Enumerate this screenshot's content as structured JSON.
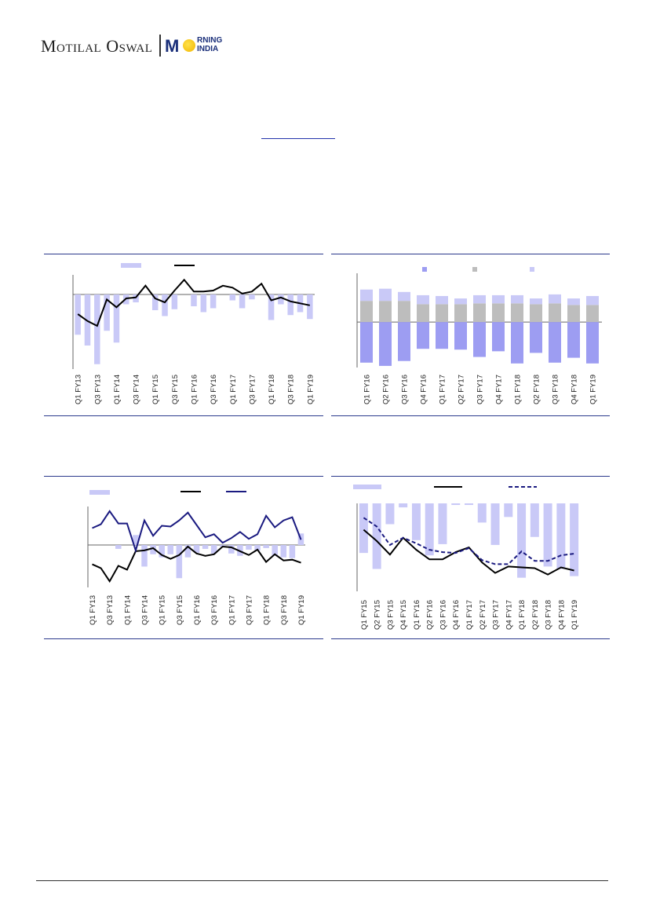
{
  "header": {
    "logo_brand": "Motilal Oswal",
    "logo_sub_top": "RNING",
    "logo_sub_bottom": "INDIA",
    "logo_m": "M"
  },
  "colors": {
    "bar_light": "#c9c9f7",
    "bar_medium": "#9d9df2",
    "bar_grey": "#bdbdbd",
    "line_black": "#000000",
    "line_navy": "#1a1a80",
    "rule": "#2b3a8c"
  },
  "chart_data": [
    {
      "id": "chart1",
      "type": "bar",
      "categories": [
        "Q1 FY13",
        "Q2 FY13",
        "Q3 FY13",
        "Q4 FY13",
        "Q1 FY14",
        "Q2 FY14",
        "Q3 FY14",
        "Q4 FY14",
        "Q1 FY15",
        "Q2 FY15",
        "Q3 FY15",
        "Q4 FY15",
        "Q1 FY16",
        "Q2 FY16",
        "Q3 FY16",
        "Q4 FY16",
        "Q1 FY17",
        "Q2 FY17",
        "Q3 FY17",
        "Q4 FY17",
        "Q1 FY18",
        "Q2 FY18",
        "Q3 FY18",
        "Q4 FY18",
        "Q1 FY19"
      ],
      "x_tick_labels": [
        "Q1 FY13",
        "Q3 FY13",
        "Q1 FY14",
        "Q3 FY14",
        "Q1 FY15",
        "Q3 FY15",
        "Q1 FY16",
        "Q3 FY16",
        "Q1 FY17",
        "Q3 FY17",
        "Q1 FY18",
        "Q3 FY18",
        "Q1 FY19"
      ],
      "series": [
        {
          "kind": "bar",
          "color": "#c9c9f7",
          "values": [
            -4.1,
            -5.2,
            -7.1,
            -3.7,
            -4.9,
            -1.0,
            -0.8,
            0.0,
            -1.6,
            -2.2,
            -1.5,
            0.0,
            -1.2,
            -1.8,
            -1.4,
            0.0,
            -0.6,
            -1.4,
            -0.5,
            0.0,
            -2.6,
            -1.0,
            -2.1,
            -1.8,
            -2.5
          ]
        },
        {
          "kind": "line",
          "color": "#000000",
          "values": [
            -2.0,
            -2.7,
            -3.2,
            -0.5,
            -1.3,
            -0.4,
            -0.3,
            0.9,
            -0.4,
            -0.8,
            0.4,
            1.5,
            0.3,
            0.3,
            0.4,
            0.9,
            0.7,
            0.1,
            0.3,
            1.1,
            -0.6,
            -0.3,
            -0.7,
            -0.9,
            -1.1
          ]
        }
      ],
      "ylim": [
        -7.6,
        2.0
      ]
    },
    {
      "id": "chart2",
      "type": "bar",
      "categories": [
        "Q1 FY16",
        "Q2 FY16",
        "Q3 FY16",
        "Q4 FY16",
        "Q1 FY17",
        "Q2 FY17",
        "Q3 FY17",
        "Q4 FY17",
        "Q1 FY18",
        "Q2 FY18",
        "Q3 FY18",
        "Q4 FY18",
        "Q1 FY19"
      ],
      "x_tick_labels": [
        "Q1 FY16",
        "Q2 FY16",
        "Q3 FY16",
        "Q4 FY16",
        "Q1 FY17",
        "Q2 FY17",
        "Q3 FY17",
        "Q4 FY17",
        "Q1 FY18",
        "Q2 FY18",
        "Q3 FY18",
        "Q4 FY18",
        "Q1 FY19"
      ],
      "stacked": true,
      "series": [
        {
          "kind": "bar",
          "color": "#9d9df2",
          "values": [
            -5.0,
            -5.4,
            -4.8,
            -3.3,
            -3.3,
            -3.4,
            -4.3,
            -3.6,
            -5.1,
            -3.8,
            -5.0,
            -4.4,
            -5.1
          ]
        },
        {
          "kind": "bar",
          "color": "#bdbdbd",
          "values": [
            2.6,
            2.6,
            2.6,
            2.2,
            2.2,
            2.2,
            2.3,
            2.3,
            2.3,
            2.2,
            2.3,
            2.1,
            2.1
          ]
        },
        {
          "kind": "bar",
          "color": "#c9c9f7",
          "values": [
            1.4,
            1.5,
            1.1,
            1.1,
            1.0,
            0.7,
            1.0,
            1.0,
            1.0,
            0.7,
            1.1,
            0.8,
            1.1
          ]
        }
      ],
      "ylim": [
        -5.6,
        6.0
      ]
    },
    {
      "id": "chart3",
      "type": "bar",
      "categories": [
        "Q1 FY13",
        "Q2 FY13",
        "Q3 FY13",
        "Q4 FY13",
        "Q1 FY14",
        "Q2 FY14",
        "Q3 FY14",
        "Q4 FY14",
        "Q1 FY15",
        "Q2 FY15",
        "Q3 FY15",
        "Q4 FY15",
        "Q1 FY16",
        "Q2 FY16",
        "Q3 FY16",
        "Q4 FY16",
        "Q1 FY17",
        "Q2 FY17",
        "Q3 FY17",
        "Q4 FY17",
        "Q1 FY18",
        "Q2 FY18",
        "Q3 FY18",
        "Q4 FY18",
        "Q1 FY19"
      ],
      "x_tick_labels": [
        "Q1 FY13",
        "Q3 FY13",
        "Q1 FY14",
        "Q3 FY14",
        "Q1 FY15",
        "Q3 FY15",
        "Q1 FY16",
        "Q3 FY16",
        "Q1 FY17",
        "Q3 FY17",
        "Q1 FY18",
        "Q3 FY18",
        "Q1 FY19"
      ],
      "series": [
        {
          "kind": "bar",
          "color": "#c9c9f7",
          "values": [
            0.0,
            0.0,
            0.0,
            -0.5,
            0.0,
            1.3,
            -2.8,
            -1.2,
            -1.6,
            -1.2,
            -4.3,
            -1.6,
            -1.0,
            -0.5,
            -1.1,
            -0.2,
            -1.1,
            -1.4,
            -0.6,
            -0.7,
            -0.4,
            -1.4,
            -1.6,
            -1.7,
            1.5
          ]
        },
        {
          "kind": "line",
          "color": "#000000",
          "values": [
            -2.5,
            -3.0,
            -4.7,
            -2.7,
            -3.2,
            -0.8,
            -0.7,
            -0.4,
            -1.3,
            -1.8,
            -1.3,
            -0.2,
            -1.1,
            -1.4,
            -1.2,
            -0.2,
            -0.3,
            -0.8,
            -1.3,
            -0.6,
            -2.2,
            -1.2,
            -2.0,
            -1.9,
            -2.3
          ]
        },
        {
          "kind": "line",
          "color": "#1a1a80",
          "values": [
            2.2,
            2.7,
            4.4,
            2.8,
            2.8,
            -0.7,
            3.2,
            1.2,
            2.5,
            2.4,
            3.2,
            4.2,
            2.6,
            1.0,
            1.4,
            0.3,
            0.9,
            1.7,
            0.8,
            1.4,
            3.8,
            2.3,
            3.2,
            3.6,
            0.7
          ]
        }
      ],
      "ylim": [
        -5.5,
        5.0
      ]
    },
    {
      "id": "chart4",
      "type": "bar",
      "categories": [
        "Q1 FY15",
        "Q2 FY15",
        "Q3 FY15",
        "Q4 FY15",
        "Q1 FY16",
        "Q2 FY16",
        "Q3 FY16",
        "Q4 FY16",
        "Q1 FY17",
        "Q2 FY17",
        "Q3 FY17",
        "Q4 FY17",
        "Q1 FY18",
        "Q2 FY18",
        "Q3 FY18",
        "Q4 FY18",
        "Q1 FY19"
      ],
      "x_tick_labels": [
        "Q1 FY15",
        "Q2 FY15",
        "Q3 FY15",
        "Q4 FY15",
        "Q1 FY16",
        "Q2 FY16",
        "Q3 FY16",
        "Q4 FY16",
        "Q1 FY17",
        "Q2 FY17",
        "Q3 FY17",
        "Q4 FY17",
        "Q1 FY18",
        "Q2 FY18",
        "Q3 FY18",
        "Q4 FY18",
        "Q1 FY19"
      ],
      "series": [
        {
          "kind": "bar",
          "color": "#c9c9f7",
          "values": [
            -6.2,
            -8.2,
            -2.6,
            -0.5,
            -4.6,
            -6.5,
            -5.1,
            -0.2,
            -0.2,
            -2.4,
            -5.2,
            -1.7,
            -9.3,
            -4.2,
            -7.9,
            -8.2,
            -9.1
          ]
        },
        {
          "kind": "line",
          "color": "#000000",
          "values": [
            -3.3,
            -4.7,
            -6.4,
            -4.3,
            -5.8,
            -7.0,
            -7.0,
            -6.1,
            -5.5,
            -7.4,
            -8.7,
            -7.9,
            -8.0,
            -8.1,
            -8.9,
            -8.0,
            -8.4
          ]
        },
        {
          "kind": "line",
          "color": "#1a1a80",
          "dashed": true,
          "values": [
            -1.8,
            -2.9,
            -5.2,
            -4.3,
            -5.0,
            -5.8,
            -6.1,
            -6.2,
            -5.6,
            -7.1,
            -7.6,
            -7.6,
            -6.0,
            -7.2,
            -7.2,
            -6.5,
            -6.3
          ]
        }
      ],
      "ylim": [
        -11.0,
        0.0
      ]
    }
  ]
}
